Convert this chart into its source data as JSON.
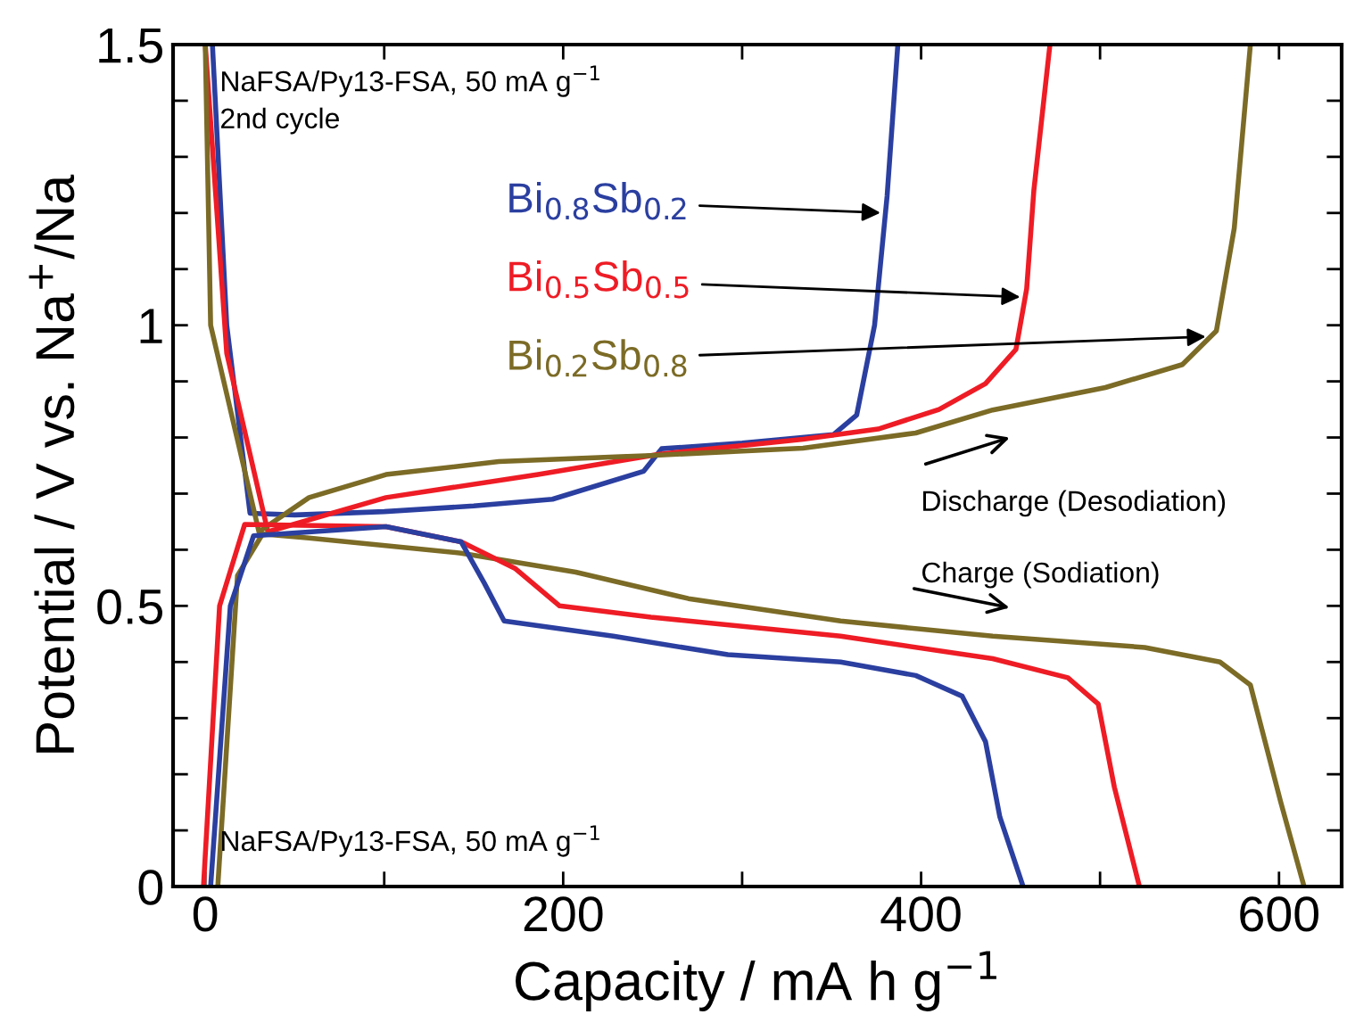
{
  "chart_data": {
    "type": "line",
    "xlabel": "Capacity / mA h g$^{−1}$",
    "ylabel": "Potential / V vs. Na$^{+}$/Na",
    "xlim": [
      -18,
      635
    ],
    "ylim": [
      0,
      1.5
    ],
    "xticks": [
      0,
      {
        "value": 100,
        "label": null
      },
      200,
      {
        "value": 300,
        "label": null
      },
      400,
      {
        "value": 500,
        "label": null
      },
      600
    ],
    "yticks": [
      0,
      {
        "value": 0.1,
        "label": null
      },
      {
        "value": 0.2,
        "label": null
      },
      {
        "value": 0.3,
        "label": null
      },
      {
        "value": 0.4,
        "label": null
      },
      0.5,
      {
        "value": 0.6,
        "label": null
      },
      {
        "value": 0.7,
        "label": null
      },
      {
        "value": 0.8,
        "label": null
      },
      {
        "value": 0.9,
        "label": null
      },
      1,
      {
        "value": 1.1,
        "label": null
      },
      {
        "value": 1.2,
        "label": null
      },
      {
        "value": 1.3,
        "label": null
      },
      {
        "value": 1.4,
        "label": null
      },
      1.5
    ],
    "grid": false,
    "legend": false,
    "annotations": [
      "NaFSA/Py13-FSA, 50 mA g$^{−1}$\n2nd cycle",
      "Discharge (Desodiation)",
      "Charge (Sodiation)",
      "NaFSA/Py13-FSA, 50 mA g$^{−1}$"
    ],
    "series": [
      {
        "name": "Bi$_{0.8}$Sb$_{0.2}$",
        "color": "#2b3fa0",
        "x": [
          4,
          12,
          25,
          50,
          100,
          150,
          194,
          245,
          255,
          300,
          351,
          364,
          374,
          381,
          387
        ],
        "values": [
          1.5,
          1.0,
          0.665,
          0.662,
          0.668,
          0.678,
          0.69,
          0.74,
          0.78,
          0.79,
          0.805,
          0.84,
          1.0,
          1.23,
          1.5
        ]
      },
      {
        "name": "Bi$_{0.5}$Sb$_{0.5}$",
        "color": "#ee1c25",
        "x": [
          0,
          12,
          35,
          101,
          186,
          253,
          334,
          376,
          410,
          436,
          453,
          459,
          463,
          472
        ],
        "values": [
          1.5,
          0.95,
          0.632,
          0.693,
          0.734,
          0.77,
          0.797,
          0.815,
          0.85,
          0.896,
          0.957,
          1.065,
          1.24,
          1.5
        ]
      },
      {
        "name": "Bi$_{0.2}$Sb$_{0.8}$",
        "color": "#7b6b26",
        "x": [
          0,
          3,
          30,
          58,
          101,
          164,
          249,
          334,
          397,
          440,
          503,
          546,
          565,
          575,
          584
        ],
        "values": [
          1.5,
          1.0,
          0.632,
          0.693,
          0.734,
          0.757,
          0.768,
          0.781,
          0.808,
          0.849,
          0.889,
          0.93,
          0.99,
          1.173,
          1.5
        ]
      },
      {
        "color": "#7b6b26",
        "x": [
          7,
          18,
          32,
          58,
          143,
          207,
          270,
          355,
          440,
          525,
          567,
          584,
          601,
          614
        ],
        "values": [
          0,
          0.554,
          0.628,
          0.621,
          0.594,
          0.56,
          0.513,
          0.473,
          0.446,
          0.426,
          0.4,
          0.359,
          0.15,
          0
        ]
      },
      {
        "color": "#ee1c25",
        "x": [
          -1,
          8,
          22,
          101,
          143,
          173,
          198,
          249,
          355,
          440,
          482,
          499,
          508,
          522
        ],
        "values": [
          0,
          0.5,
          0.645,
          0.641,
          0.614,
          0.567,
          0.5,
          0.48,
          0.446,
          0.406,
          0.372,
          0.325,
          0.177,
          0
        ]
      },
      {
        "color": "#2b3fa0",
        "x": [
          3,
          14,
          27,
          101,
          143,
          156,
          167,
          228,
          292,
          355,
          397,
          423,
          436,
          444,
          457
        ],
        "values": [
          0,
          0.5,
          0.625,
          0.641,
          0.614,
          0.54,
          0.473,
          0.446,
          0.413,
          0.4,
          0.376,
          0.339,
          0.258,
          0.124,
          0
        ]
      }
    ]
  }
}
